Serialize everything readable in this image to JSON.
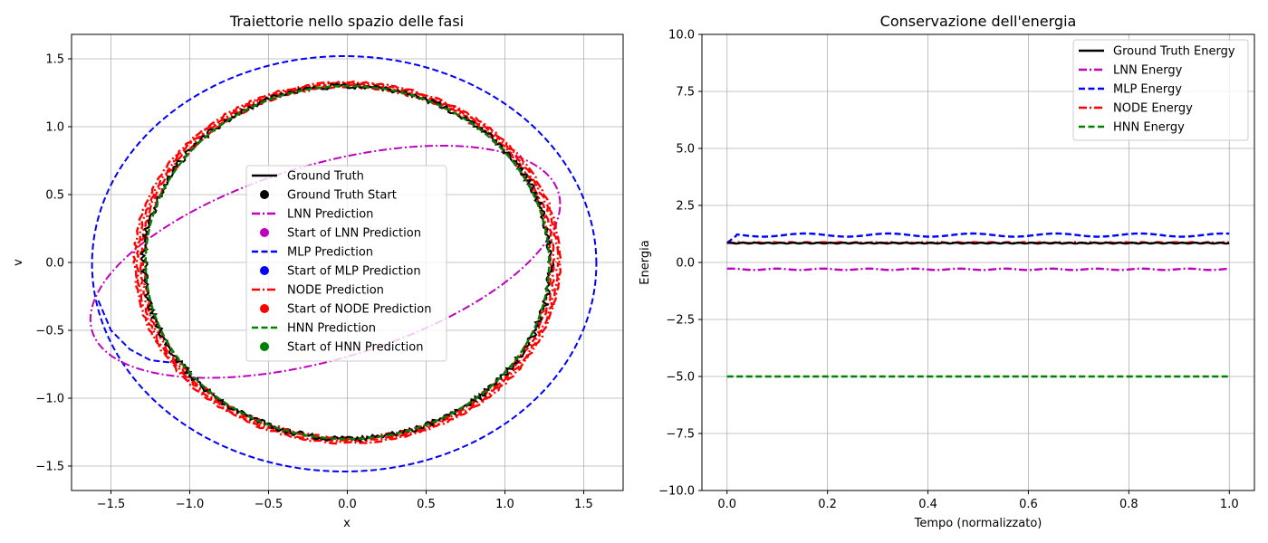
{
  "chart_data": [
    {
      "type": "line",
      "title": "Traiettorie nello spazio delle fasi",
      "xlabel": "x",
      "ylabel": "v",
      "xlim": [
        -1.75,
        1.75
      ],
      "ylim": [
        -1.68,
        1.68
      ],
      "xticks": [
        -1.5,
        -1.0,
        -0.5,
        0.0,
        0.5,
        1.0,
        1.5
      ],
      "xtick_labels": [
        "−1.5",
        "−1.0",
        "−0.5",
        "0.0",
        "0.5",
        "1.0",
        "1.5"
      ],
      "yticks": [
        -1.5,
        -1.0,
        -0.5,
        0.0,
        0.5,
        1.0,
        1.5
      ],
      "ytick_labels": [
        "−1.5",
        "−1.0",
        "−0.5",
        "0.0",
        "0.5",
        "1.0",
        "1.5"
      ],
      "grid": true,
      "legend_position": "center",
      "series": [
        {
          "name": "Ground Truth",
          "color": "#000000",
          "style": "solid",
          "shape": "ellipse",
          "center": [
            0.0,
            0.0
          ],
          "x_amplitude": 1.29,
          "v_amplitude": 1.3,
          "noise": 0.02
        },
        {
          "name": "LNN Prediction",
          "color": "#bf00bf",
          "style": "dashdot",
          "shape": "tilted-ellipse",
          "x_range": [
            -1.63,
            1.35
          ],
          "v_range": [
            -0.85,
            0.86
          ]
        },
        {
          "name": "MLP Prediction",
          "color": "#0000ff",
          "style": "dashed",
          "shape": "ellipse",
          "center": [
            -0.02,
            -0.01
          ],
          "x_amplitude": 1.6,
          "v_amplitude": 1.53,
          "transient": [
            [
              -1.58,
              -0.28
            ],
            [
              -1.5,
              -0.5
            ],
            [
              -1.38,
              -0.64
            ],
            [
              -1.25,
              -0.72
            ],
            [
              -1.1,
              -0.74
            ]
          ]
        },
        {
          "name": "NODE Prediction",
          "color": "#ff0000",
          "style": "dashdot",
          "shape": "ellipse-band",
          "center": [
            0.0,
            0.0
          ],
          "x_amplitude": 1.32,
          "v_amplitude": 1.31,
          "band_width": 0.03
        },
        {
          "name": "HNN Prediction",
          "color": "#008000",
          "style": "dashed",
          "shape": "ellipse",
          "center": [
            0.0,
            0.0
          ],
          "x_amplitude": 1.28,
          "v_amplitude": 1.3
        }
      ],
      "start_markers": [
        {
          "name": "Ground Truth Start",
          "color": "#000000"
        },
        {
          "name": "Start of LNN Prediction",
          "color": "#bf00bf"
        },
        {
          "name": "Start of MLP Prediction",
          "color": "#0000ff"
        },
        {
          "name": "Start of NODE Prediction",
          "color": "#ff0000"
        },
        {
          "name": "Start of HNN Prediction",
          "color": "#008000"
        }
      ]
    },
    {
      "type": "line",
      "title": "Conservazione dell'energia",
      "xlabel": "Tempo (normalizzato)",
      "ylabel": "Energia",
      "xlim": [
        -0.05,
        1.05
      ],
      "ylim": [
        -10,
        10
      ],
      "xticks": [
        0.0,
        0.2,
        0.4,
        0.6,
        0.8,
        1.0
      ],
      "xtick_labels": [
        "0.0",
        "0.2",
        "0.4",
        "0.6",
        "0.8",
        "1.0"
      ],
      "yticks": [
        -10,
        -7.5,
        -5,
        -2.5,
        0,
        2.5,
        5,
        7.5,
        10
      ],
      "ytick_labels": [
        "−10.0",
        "−7.5",
        "−5.0",
        "−2.5",
        "0.0",
        "2.5",
        "5.0",
        "7.5",
        "10.0"
      ],
      "grid": true,
      "legend_position": "top-right",
      "series": [
        {
          "name": "Ground Truth Energy",
          "color": "#000000",
          "style": "solid",
          "base": 0.85,
          "amplitude": 0.02,
          "freq": 40
        },
        {
          "name": "LNN Energy",
          "color": "#bf00bf",
          "style": "dashdot",
          "base": -0.3,
          "amplitude": 0.03,
          "freq": 11
        },
        {
          "name": "MLP Energy",
          "color": "#0000ff",
          "style": "dashed",
          "base": 1.2,
          "amplitude": 0.07,
          "freq": 6,
          "start_value": 0.85
        },
        {
          "name": "NODE Energy",
          "color": "#ff0000",
          "style": "dashdot",
          "base": 0.87,
          "amplitude": 0.02,
          "freq": 30
        },
        {
          "name": "HNN Energy",
          "color": "#008000",
          "style": "dashed",
          "base": -5.0,
          "amplitude": 0.0,
          "freq": 1
        }
      ]
    }
  ]
}
